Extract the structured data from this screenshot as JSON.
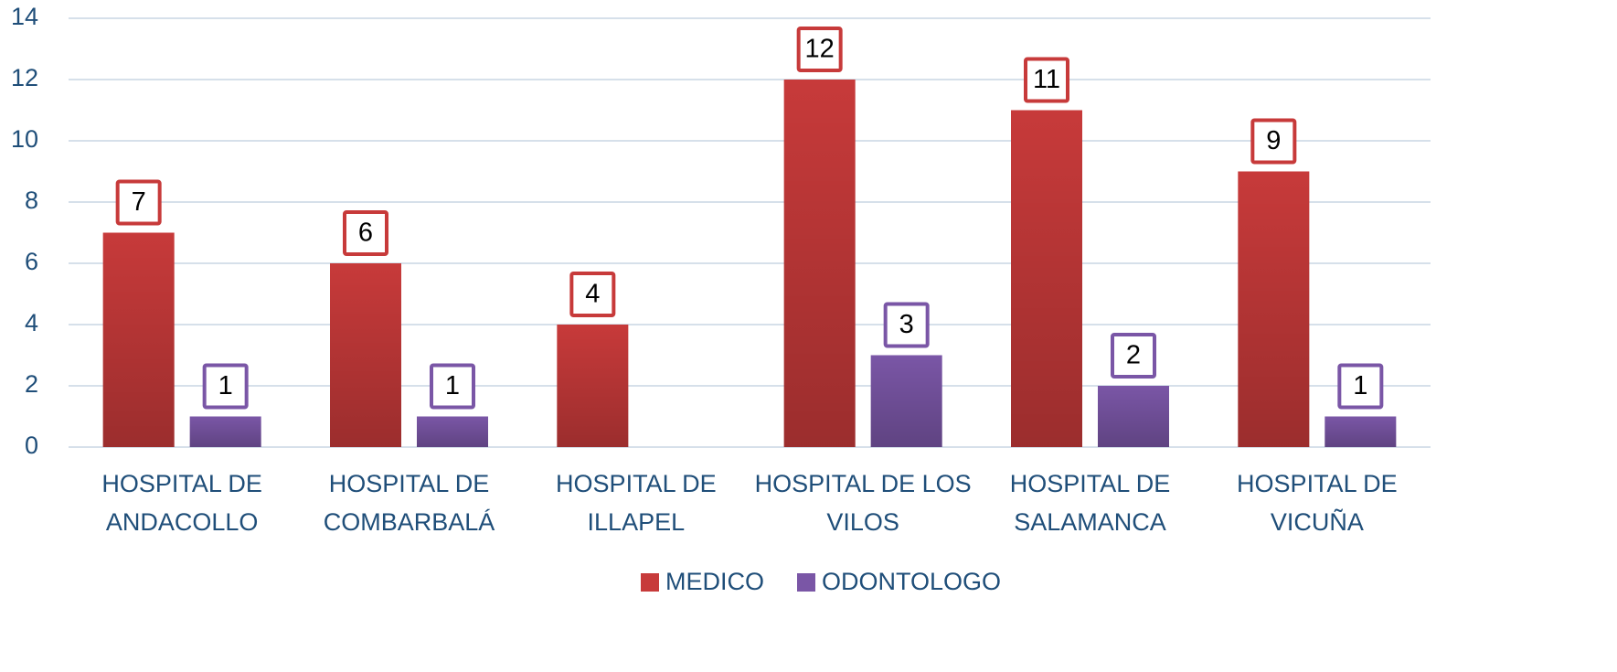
{
  "chart_data": {
    "type": "bar",
    "categories": [
      "HOSPITAL DE ANDACOLLO",
      "HOSPITAL DE COMBARBALÁ",
      "HOSPITAL DE ILLAPEL",
      "HOSPITAL DE LOS VILOS",
      "HOSPITAL DE SALAMANCA",
      "HOSPITAL DE VICUÑA"
    ],
    "series": [
      {
        "name": "MEDICO",
        "color": "#c73a3a",
        "values": [
          7,
          6,
          4,
          12,
          11,
          9
        ]
      },
      {
        "name": "ODONTOLOGO",
        "color": "#7a56a6",
        "values": [
          1,
          1,
          null,
          3,
          2,
          1
        ]
      }
    ],
    "ylim": [
      0,
      14
    ],
    "yticks": [
      0,
      2,
      4,
      6,
      8,
      10,
      12,
      14
    ],
    "grid": true,
    "legend": "bottom"
  }
}
